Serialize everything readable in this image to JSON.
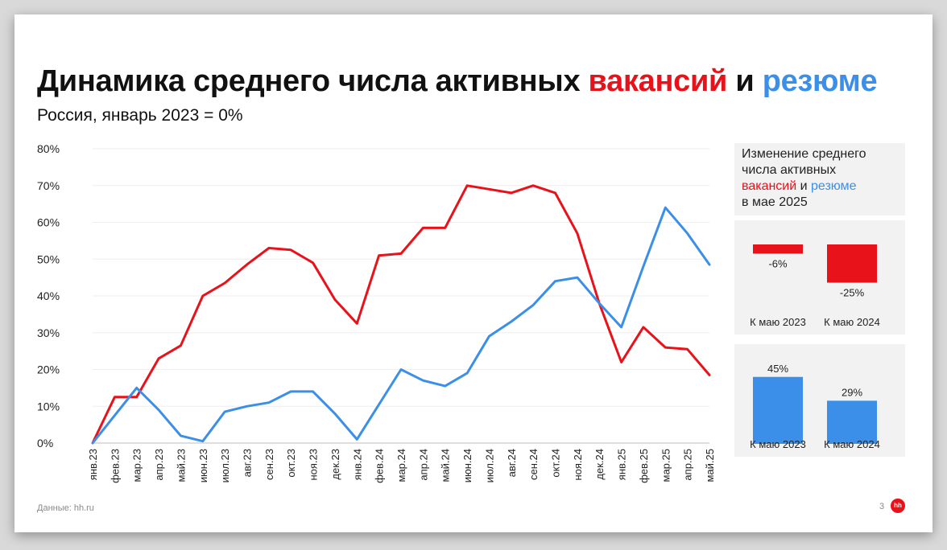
{
  "title": {
    "part1": "Динамика среднего числа активных ",
    "vacancies": "вакансий",
    "and": " и ",
    "resumes": "резюме"
  },
  "subtitle": "Россия, январь 2023 = 0%",
  "colors": {
    "vacancies": "#e8121b",
    "resumes": "#3b8fe8"
  },
  "side_note": {
    "line1": "Изменение среднего",
    "line2": "числа активных",
    "vacancies": "вакансий",
    "and": " и ",
    "resumes": "резюме",
    "line4": "в мае 2025"
  },
  "source": "Данные: hh.ru",
  "page_number": "3",
  "logo": "hh",
  "chart_data": [
    {
      "type": "line",
      "title": "",
      "xlabel": "",
      "ylabel": "",
      "ylim": [
        0,
        80
      ],
      "yticks": [
        "0%",
        "10%",
        "20%",
        "30%",
        "40%",
        "50%",
        "60%",
        "70%",
        "80%"
      ],
      "grid": true,
      "categories": [
        "янв.23",
        "фев.23",
        "мар.23",
        "апр.23",
        "май.23",
        "июн.23",
        "июл.23",
        "авг.23",
        "сен.23",
        "окт.23",
        "ноя.23",
        "дек.23",
        "янв.24",
        "фев.24",
        "мар.24",
        "апр.24",
        "май.24",
        "июн.24",
        "июл.24",
        "авг.24",
        "сен.24",
        "окт.24",
        "ноя.24",
        "дек.24",
        "янв.25",
        "фев.25",
        "мар.25",
        "апр.25",
        "май.25"
      ],
      "series": [
        {
          "key": "vacancies",
          "values": [
            0,
            12.5,
            12.5,
            23,
            26.5,
            40,
            43.5,
            48.5,
            53,
            52.5,
            49,
            39,
            32.5,
            51,
            51.5,
            58.5,
            58.5,
            70,
            69,
            68,
            70,
            68,
            57,
            38,
            22,
            31.5,
            26,
            25.5,
            18.5
          ]
        },
        {
          "key": "resumes",
          "values": [
            0,
            7.5,
            15,
            9,
            2,
            0.5,
            8.5,
            10,
            11,
            14,
            14,
            8,
            1,
            10.5,
            20,
            17,
            15.5,
            19,
            29,
            33,
            37.5,
            44,
            45,
            38,
            31.5,
            48,
            64,
            57,
            48.5
          ]
        }
      ]
    },
    {
      "type": "bar",
      "title": "",
      "categories": [
        "К маю 2023",
        "К маю 2024"
      ],
      "values": [
        -6,
        -25
      ],
      "labels": [
        "-6%",
        "-25%"
      ]
    },
    {
      "type": "bar",
      "title": "",
      "categories": [
        "К маю 2023",
        "К маю 2024"
      ],
      "values": [
        45,
        29
      ],
      "labels": [
        "45%",
        "29%"
      ]
    }
  ]
}
